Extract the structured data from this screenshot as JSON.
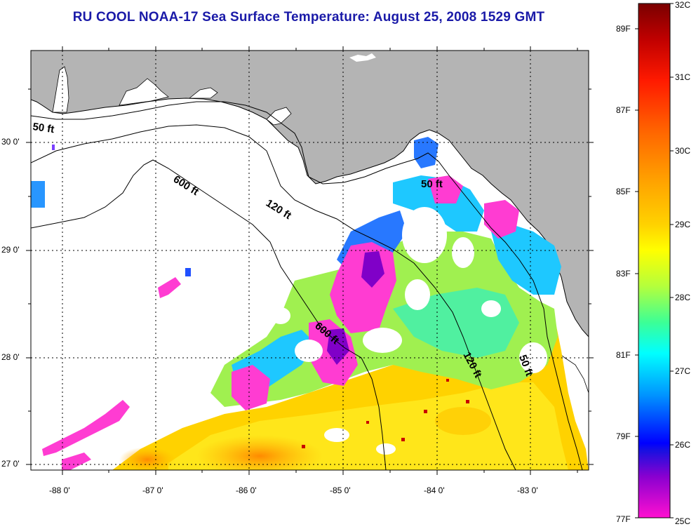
{
  "title": "RU COOL  NOAA-17  Sea Surface Temperature:  August 25, 2008 1529 GMT",
  "map": {
    "land_color": "#b4b4b4",
    "water_no_data_color": "#ffffff",
    "lon_ticks": [
      "-88 0'",
      "-87 0'",
      "-86 0'",
      "-85 0'",
      "-84 0'",
      "-83 0'"
    ],
    "lat_ticks": [
      "30 0'",
      "29 0'",
      "28 0'",
      "27 0'"
    ],
    "contours": [
      {
        "label": "50 ft",
        "id": "c50-left"
      },
      {
        "label": "600 ft",
        "id": "c600-top"
      },
      {
        "label": "120 ft",
        "id": "c120-top"
      },
      {
        "label": "50 ft",
        "id": "c50-right"
      },
      {
        "label": "600 ft",
        "id": "c600-mid"
      },
      {
        "label": "120 ft",
        "id": "c120-bot"
      },
      {
        "label": "50 ft",
        "id": "c50-bot"
      }
    ]
  },
  "colorbar": {
    "celsius": [
      "32C",
      "31C",
      "30C",
      "29C",
      "28C",
      "27C",
      "26C",
      "25C"
    ],
    "fahrenheit": [
      "89F",
      "87F",
      "85F",
      "83F",
      "81F",
      "79F",
      "77F"
    ],
    "colors": [
      "#7a0000",
      "#c00000",
      "#ff1a00",
      "#ff6600",
      "#ffa500",
      "#ffd200",
      "#ffff00",
      "#b4ff3c",
      "#3cff96",
      "#00ffff",
      "#0096ff",
      "#0000ff",
      "#8000c8",
      "#ff00ff"
    ]
  }
}
